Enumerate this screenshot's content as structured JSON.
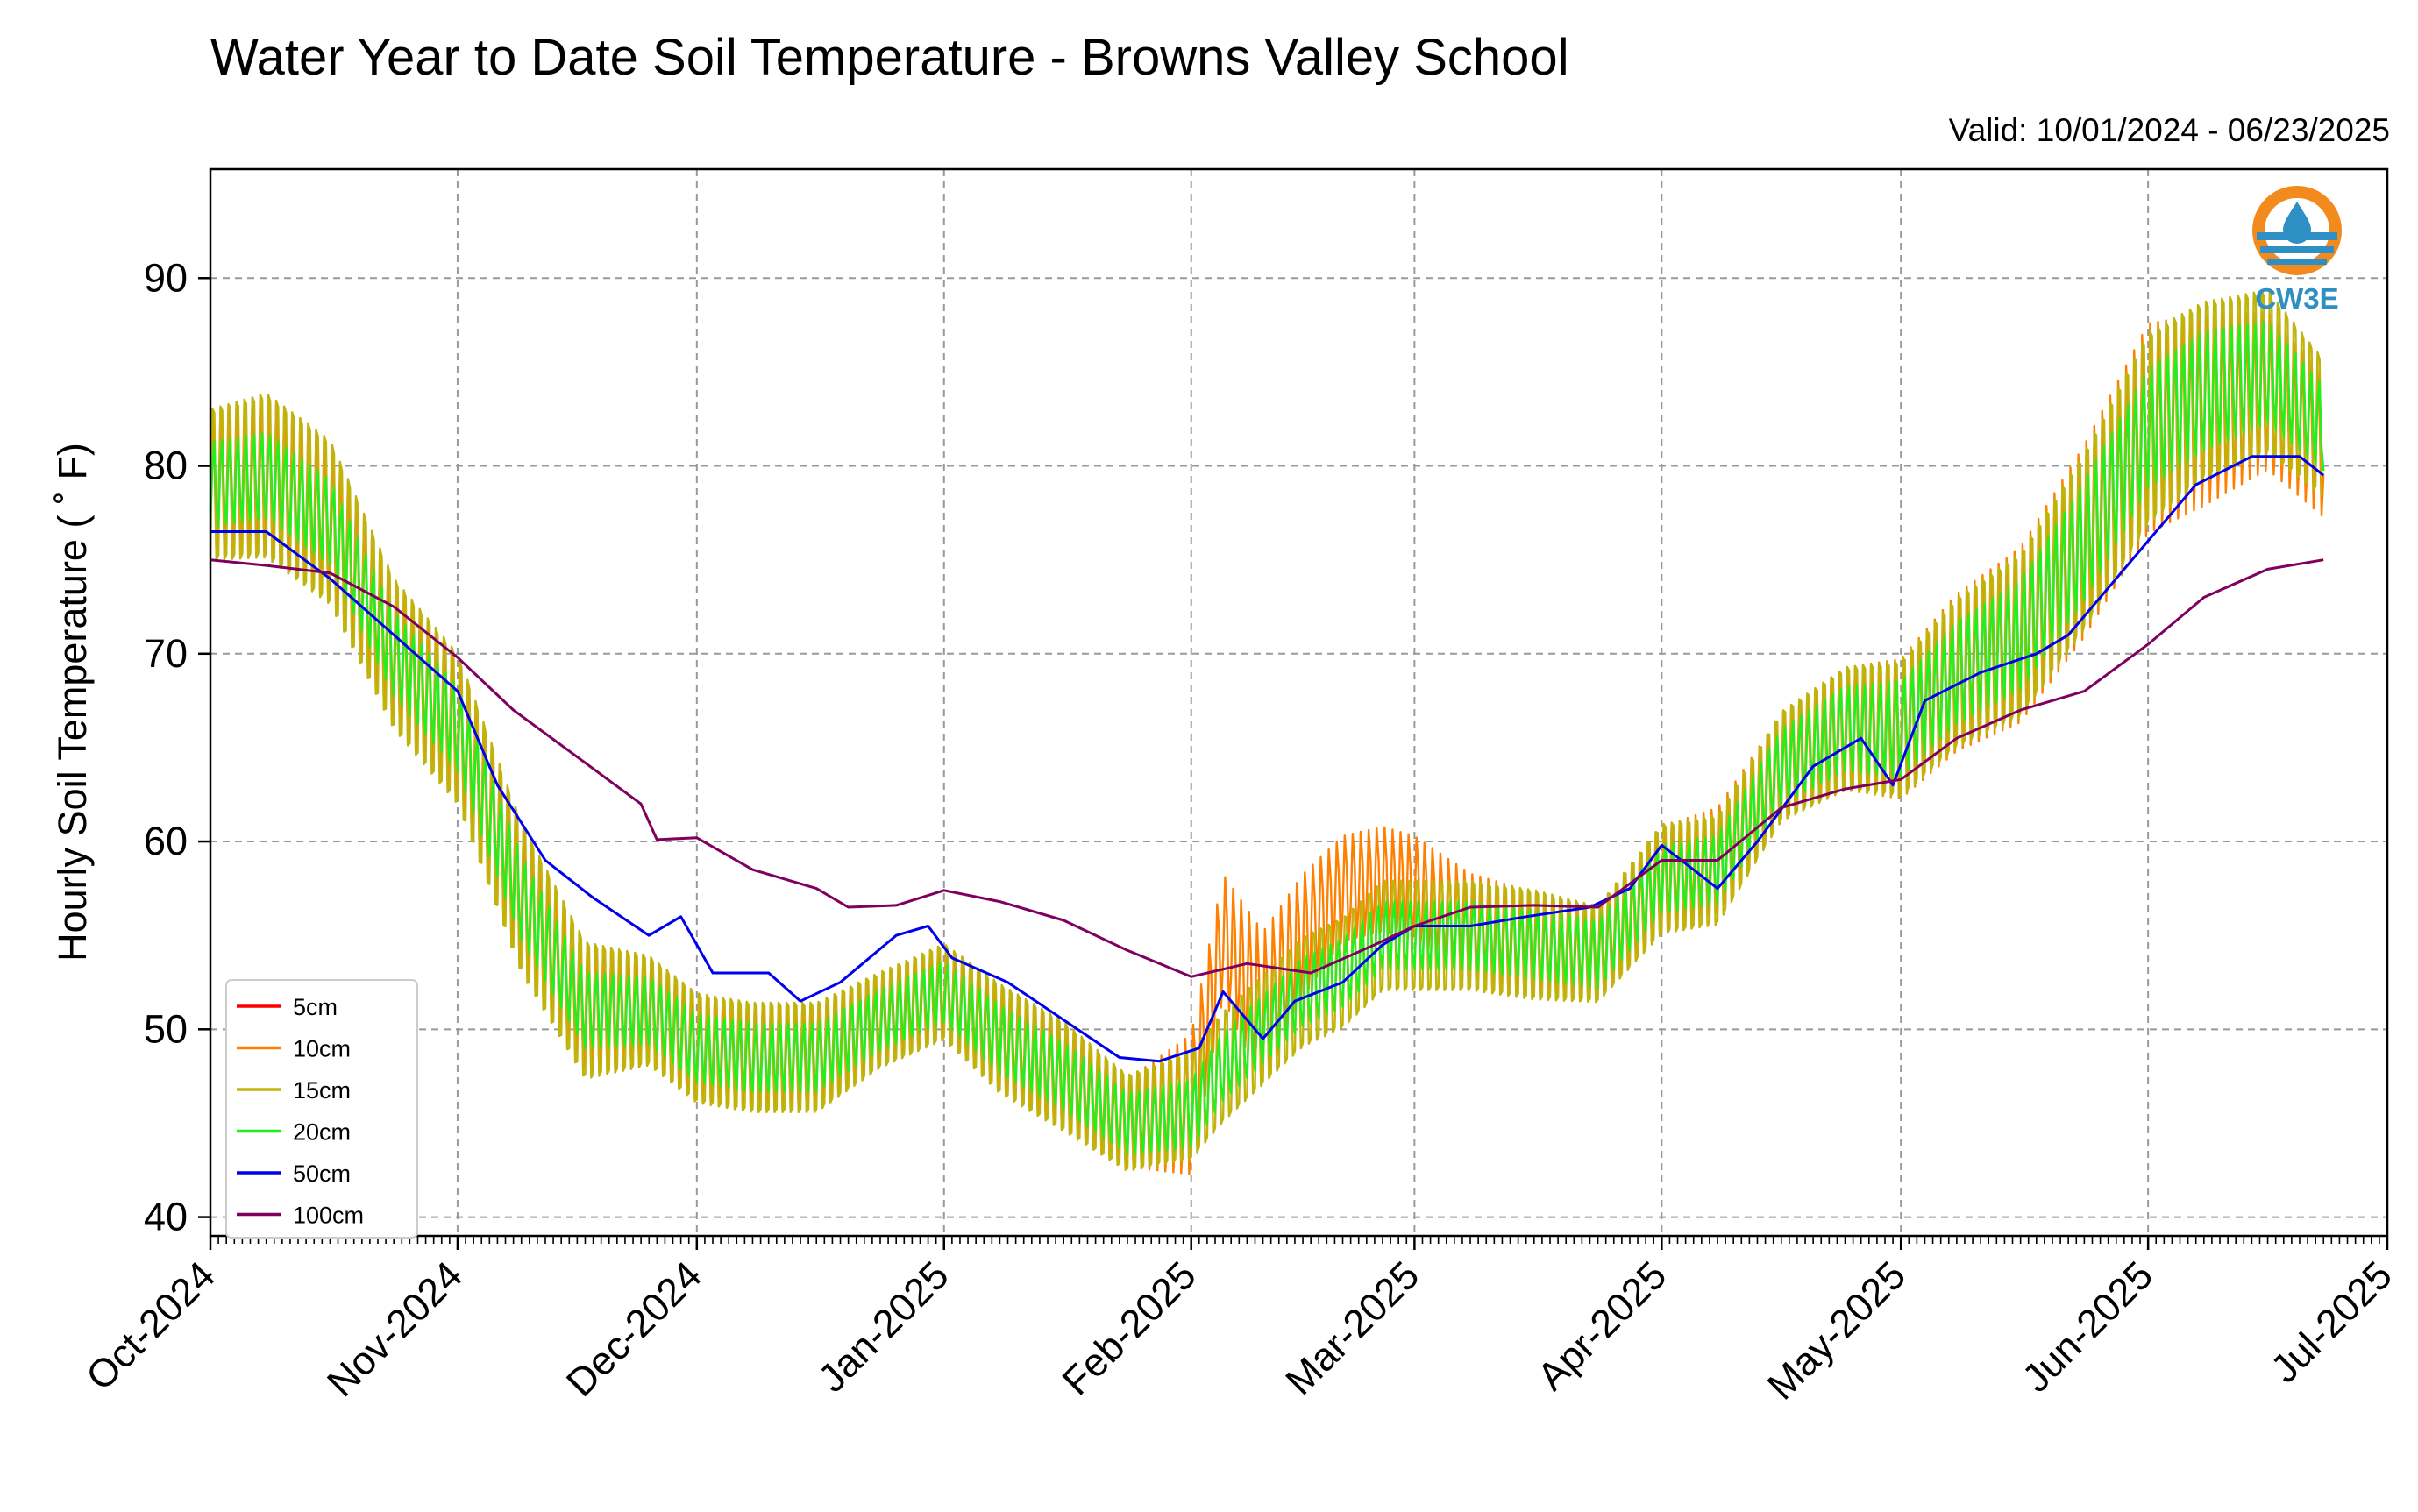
{
  "title": "Water Year to Date Soil Temperature - Browns Valley School",
  "valid_range": "Valid: 10/01/2024 - 06/23/2025",
  "logo_text": "CW3E",
  "chart_data": {
    "type": "line",
    "title": "Water Year to Date Soil Temperature - Browns Valley School",
    "ylabel": "Hourly Soil Temperature ( ˚ F)",
    "xlabel": "",
    "ylim": [
      39,
      95.8
    ],
    "xlim": [
      "2024-10-01",
      "2025-07-01"
    ],
    "grid": true,
    "legend_position": "lower-left",
    "y_ticks": [
      40,
      50,
      60,
      70,
      80,
      90
    ],
    "x_ticks": [
      {
        "date": "2024-10-01",
        "label": "Oct-2024"
      },
      {
        "date": "2024-11-01",
        "label": "Nov-2024"
      },
      {
        "date": "2024-12-01",
        "label": "Dec-2024"
      },
      {
        "date": "2025-01-01",
        "label": "Jan-2025"
      },
      {
        "date": "2025-02-01",
        "label": "Feb-2025"
      },
      {
        "date": "2025-03-01",
        "label": "Mar-2025"
      },
      {
        "date": "2025-04-01",
        "label": "Apr-2025"
      },
      {
        "date": "2025-05-01",
        "label": "May-2025"
      },
      {
        "date": "2025-06-01",
        "label": "Jun-2025"
      },
      {
        "date": "2025-07-01",
        "label": "Jul-2025"
      }
    ],
    "series": [
      {
        "name": "5cm",
        "color": "#ff0000",
        "x": [],
        "y": []
      },
      {
        "name": "10cm",
        "color": "#ff8000",
        "style": "daily-cycle",
        "x": [
          "2024-10-01",
          "2024-10-08",
          "2024-10-16",
          "2024-10-24",
          "2024-11-01",
          "2024-11-09",
          "2024-11-17",
          "2024-11-25",
          "2024-12-01",
          "2024-12-08",
          "2024-12-16",
          "2024-12-24",
          "2025-01-01",
          "2025-01-08",
          "2025-01-16",
          "2025-01-24",
          "2025-02-01",
          "2025-02-05",
          "2025-02-10",
          "2025-02-15",
          "2025-02-20",
          "2025-02-25",
          "2025-03-01",
          "2025-03-08",
          "2025-03-16",
          "2025-03-24",
          "2025-04-01",
          "2025-04-08",
          "2025-04-16",
          "2025-04-24",
          "2025-05-01",
          "2025-05-08",
          "2025-05-16",
          "2025-05-24",
          "2025-06-01",
          "2025-06-08",
          "2025-06-16",
          "2025-06-23"
        ],
        "y": [
          79,
          79.5,
          77,
          70,
          66,
          57,
          51,
          51,
          49,
          48.5,
          48.5,
          50.5,
          52,
          49.5,
          47.5,
          45,
          46,
          55,
          51,
          55,
          57.5,
          58,
          57.5,
          55.5,
          54.5,
          54,
          58,
          59,
          64,
          66,
          66,
          69,
          71,
          76,
          82,
          83,
          84,
          81
        ],
        "amp": [
          4,
          4.5,
          4.5,
          4,
          4,
          4,
          3.5,
          3,
          3,
          3,
          3,
          2.5,
          2.5,
          3,
          3,
          2.5,
          4,
          3.5,
          4.5,
          3.5,
          3,
          3,
          3,
          3,
          3,
          2.5,
          3,
          3,
          3,
          3.5,
          4,
          4.5,
          5,
          5.5,
          6,
          5.5,
          4.5,
          4
        ]
      },
      {
        "name": "15cm",
        "color": "#c0b30a",
        "style": "daily-cycle",
        "x": [
          "2024-10-01",
          "2024-10-08",
          "2024-10-16",
          "2024-10-24",
          "2024-11-01",
          "2024-11-09",
          "2024-11-17",
          "2024-11-25",
          "2024-12-01",
          "2024-12-08",
          "2024-12-16",
          "2024-12-24",
          "2025-01-01",
          "2025-01-08",
          "2025-01-16",
          "2025-01-24",
          "2025-02-01",
          "2025-02-05",
          "2025-02-10",
          "2025-02-15",
          "2025-02-20",
          "2025-02-25",
          "2025-03-01",
          "2025-03-08",
          "2025-03-16",
          "2025-03-24",
          "2025-04-01",
          "2025-04-08",
          "2025-04-16",
          "2025-04-24",
          "2025-05-01",
          "2025-05-08",
          "2025-05-16",
          "2025-05-24",
          "2025-06-01",
          "2025-06-08",
          "2025-06-16",
          "2025-06-23"
        ],
        "y": [
          79,
          79.5,
          77,
          70,
          66,
          57,
          51,
          51,
          49,
          48.5,
          48.5,
          50.5,
          52,
          49.5,
          47.5,
          45,
          46,
          48,
          50,
          52,
          53,
          55,
          55,
          55,
          54.5,
          54,
          58,
          58.5,
          64,
          66,
          66,
          69,
          71,
          76,
          82,
          84,
          85,
          82
        ],
        "amp": [
          5.5,
          6,
          6,
          5.5,
          5.5,
          5.5,
          5,
          4,
          4,
          4,
          4,
          3.5,
          3.5,
          4,
          4,
          3.5,
          4,
          4,
          4,
          4,
          4,
          4,
          4,
          4,
          4,
          3.5,
          4,
          4,
          4,
          4.5,
          5,
          5.5,
          6,
          6.5,
          7,
          6.5,
          6,
          5
        ]
      },
      {
        "name": "20cm",
        "color": "#22ee22",
        "style": "daily-cycle",
        "x": [
          "2024-10-01",
          "2024-10-08",
          "2024-10-16",
          "2024-10-24",
          "2024-11-01",
          "2024-11-09",
          "2024-11-17",
          "2024-11-25",
          "2024-12-01",
          "2024-12-08",
          "2024-12-16",
          "2024-12-24",
          "2025-01-01",
          "2025-01-08",
          "2025-01-16",
          "2025-01-24",
          "2025-02-01",
          "2025-02-05",
          "2025-02-10",
          "2025-02-15",
          "2025-02-20",
          "2025-02-25",
          "2025-03-01",
          "2025-03-08",
          "2025-03-16",
          "2025-03-24",
          "2025-04-01",
          "2025-04-08",
          "2025-04-16",
          "2025-04-24",
          "2025-05-01",
          "2025-05-08",
          "2025-05-16",
          "2025-05-24",
          "2025-06-01",
          "2025-06-08",
          "2025-06-16",
          "2025-06-23"
        ],
        "y": [
          79,
          79.5,
          77,
          70,
          66,
          57,
          51,
          51,
          49,
          48.5,
          48.5,
          50.5,
          52,
          49.5,
          47.5,
          45,
          45.5,
          48,
          50,
          52,
          53,
          55,
          55,
          55,
          54.5,
          54,
          58,
          58.5,
          64,
          66,
          66,
          69,
          71,
          76,
          82,
          84,
          85,
          82
        ],
        "amp": [
          2.5,
          2.5,
          2.5,
          2.5,
          2.5,
          2.5,
          2.2,
          2,
          2,
          2,
          2,
          1.8,
          1.8,
          2,
          2,
          1.8,
          2,
          2,
          2,
          2,
          2,
          2,
          2,
          2,
          2,
          2,
          2,
          2,
          2.2,
          2.5,
          2.8,
          3,
          3.2,
          3.5,
          3.5,
          3.5,
          3,
          2.5
        ]
      },
      {
        "name": "50cm",
        "color": "#0000ee",
        "style": "smooth",
        "x": [
          "2024-10-01",
          "2024-10-08",
          "2024-10-16",
          "2024-10-24",
          "2024-11-01",
          "2024-11-06",
          "2024-11-12",
          "2024-11-18",
          "2024-11-25",
          "2024-11-29",
          "2024-12-03",
          "2024-12-10",
          "2024-12-14",
          "2024-12-19",
          "2024-12-26",
          "2024-12-30",
          "2025-01-02",
          "2025-01-09",
          "2025-01-16",
          "2025-01-23",
          "2025-01-28",
          "2025-02-02",
          "2025-02-05",
          "2025-02-10",
          "2025-02-14",
          "2025-02-20",
          "2025-02-25",
          "2025-03-01",
          "2025-03-08",
          "2025-03-15",
          "2025-03-23",
          "2025-03-28",
          "2025-04-01",
          "2025-04-05",
          "2025-04-08",
          "2025-04-13",
          "2025-04-20",
          "2025-04-26",
          "2025-04-30",
          "2025-05-04",
          "2025-05-11",
          "2025-05-18",
          "2025-05-22",
          "2025-06-01",
          "2025-06-07",
          "2025-06-14",
          "2025-06-20",
          "2025-06-23"
        ],
        "y": [
          76.5,
          76.5,
          74,
          71,
          68,
          63,
          59,
          57,
          55,
          56,
          53,
          53,
          51.5,
          52.5,
          55,
          55.5,
          53.8,
          52.5,
          50.5,
          48.5,
          48.3,
          49,
          52,
          49.5,
          51.5,
          52.5,
          54.5,
          55.5,
          55.5,
          56,
          56.5,
          57.5,
          59.8,
          58.5,
          57.5,
          60,
          64,
          65.5,
          63,
          67.5,
          69,
          70,
          71,
          76,
          79,
          80.5,
          80.5,
          79.5
        ]
      },
      {
        "name": "100cm",
        "color": "#800060",
        "style": "smooth",
        "x": [
          "2024-10-01",
          "2024-10-08",
          "2024-10-16",
          "2024-10-24",
          "2024-11-01",
          "2024-11-08",
          "2024-11-16",
          "2024-11-24",
          "2024-11-26",
          "2024-12-01",
          "2024-12-08",
          "2024-12-16",
          "2024-12-20",
          "2024-12-26",
          "2025-01-01",
          "2025-01-08",
          "2025-01-16",
          "2025-01-24",
          "2025-02-01",
          "2025-02-08",
          "2025-02-16",
          "2025-02-24",
          "2025-03-01",
          "2025-03-08",
          "2025-03-16",
          "2025-03-24",
          "2025-04-01",
          "2025-04-08",
          "2025-04-16",
          "2025-04-24",
          "2025-05-01",
          "2025-05-08",
          "2025-05-16",
          "2025-05-24",
          "2025-06-01",
          "2025-06-08",
          "2025-06-16",
          "2025-06-23"
        ],
        "y": [
          75,
          74.7,
          74.3,
          72.5,
          69.8,
          67,
          64.5,
          62,
          60.1,
          60.2,
          58.5,
          57.5,
          56.5,
          56.6,
          57.4,
          56.8,
          55.8,
          54.2,
          52.8,
          53.5,
          53,
          54.5,
          55.5,
          56.5,
          56.6,
          56.5,
          59,
          59,
          61.8,
          62.8,
          63.3,
          65.5,
          67,
          68,
          70.5,
          73,
          74.5,
          75
        ]
      }
    ]
  }
}
